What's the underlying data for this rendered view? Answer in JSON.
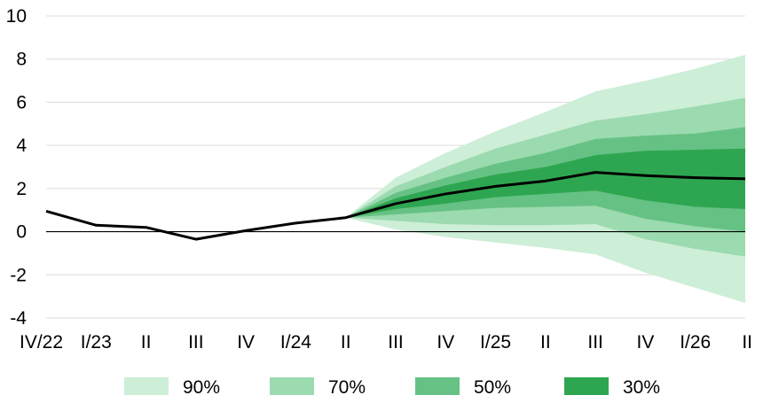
{
  "chart_data": {
    "type": "area",
    "title": "",
    "xlabel": "",
    "ylabel": "",
    "ylim": [
      -4,
      10
    ],
    "yticks": [
      -4,
      -2,
      0,
      2,
      4,
      6,
      8,
      10
    ],
    "grid": "horizontal",
    "legend_position": "bottom",
    "categories": [
      "IV/22",
      "I/23",
      "II",
      "III",
      "IV",
      "I/24",
      "II",
      "III",
      "IV",
      "I/25",
      "II",
      "III",
      "IV",
      "I/26",
      "II"
    ],
    "central_line": {
      "values": [
        0.95,
        0.3,
        0.2,
        -0.35,
        0.05,
        0.4,
        0.65,
        1.3,
        1.75,
        2.1,
        2.35,
        2.75,
        2.6,
        2.5,
        2.45
      ]
    },
    "bands": [
      {
        "name": "90%",
        "color": "#cdeed7",
        "lower": [
          null,
          null,
          null,
          null,
          null,
          null,
          0.65,
          0.1,
          -0.25,
          -0.5,
          -0.75,
          -1.05,
          -1.9,
          -2.6,
          -3.3
        ],
        "upper": [
          null,
          null,
          null,
          null,
          null,
          null,
          0.65,
          2.5,
          3.65,
          4.65,
          5.55,
          6.5,
          7.0,
          7.55,
          8.2
        ]
      },
      {
        "name": "70%",
        "color": "#9cdab0",
        "lower": [
          null,
          null,
          null,
          null,
          null,
          null,
          0.65,
          0.5,
          0.35,
          0.3,
          0.3,
          0.35,
          -0.35,
          -0.8,
          -1.15
        ],
        "upper": [
          null,
          null,
          null,
          null,
          null,
          null,
          0.65,
          2.1,
          3.0,
          3.85,
          4.5,
          5.15,
          5.45,
          5.8,
          6.2
        ]
      },
      {
        "name": "50%",
        "color": "#66c284",
        "lower": [
          null,
          null,
          null,
          null,
          null,
          null,
          0.65,
          0.8,
          0.95,
          1.1,
          1.15,
          1.2,
          0.6,
          0.25,
          0.0
        ],
        "upper": [
          null,
          null,
          null,
          null,
          null,
          null,
          0.65,
          1.8,
          2.5,
          3.15,
          3.65,
          4.3,
          4.45,
          4.55,
          4.85
        ]
      },
      {
        "name": "30%",
        "color": "#2ea651",
        "lower": [
          null,
          null,
          null,
          null,
          null,
          null,
          0.65,
          1.05,
          1.3,
          1.6,
          1.75,
          1.9,
          1.45,
          1.15,
          1.05
        ],
        "upper": [
          null,
          null,
          null,
          null,
          null,
          null,
          0.65,
          1.55,
          2.15,
          2.65,
          3.0,
          3.55,
          3.75,
          3.8,
          3.85
        ]
      }
    ],
    "legend": [
      "90%",
      "70%",
      "50%",
      "30%"
    ]
  }
}
